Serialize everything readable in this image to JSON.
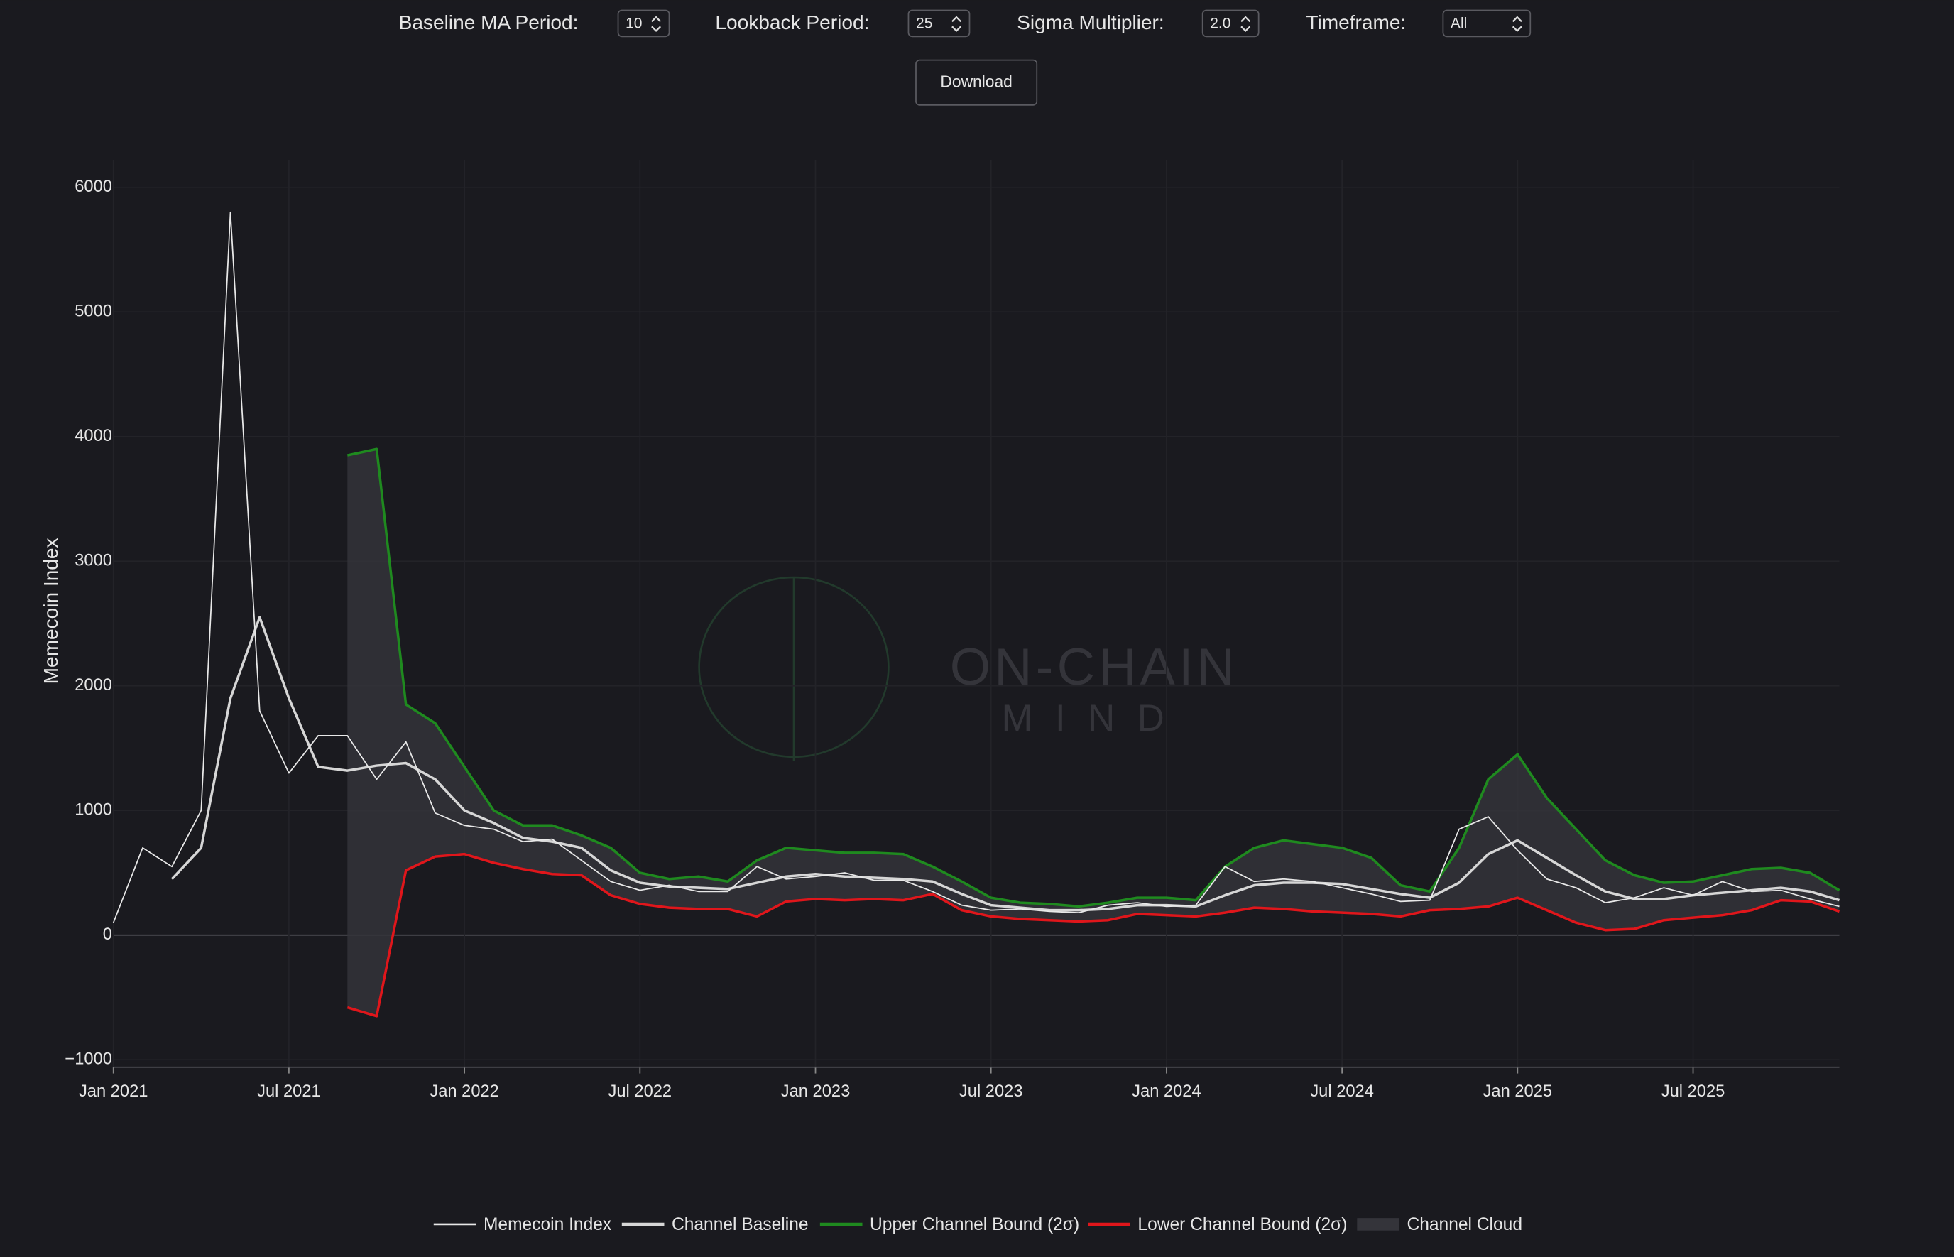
{
  "controls": [
    {
      "label": "Baseline MA Period:",
      "value": "10"
    },
    {
      "label": "Lookback Period:",
      "value": "25"
    },
    {
      "label": "Sigma Multiplier:",
      "value": "2.0"
    },
    {
      "label": "Timeframe:",
      "value": "All"
    }
  ],
  "download": "Download",
  "watermark": [
    "ON-CHAIN",
    "MIND"
  ],
  "chart_data": {
    "type": "line",
    "ylabel": "Memecoin Index",
    "x": [
      "2021-01",
      "2021-02",
      "2021-03",
      "2021-04",
      "2021-05",
      "2021-06",
      "2021-07",
      "2021-08",
      "2021-09",
      "2021-10",
      "2021-11",
      "2021-12",
      "2022-01",
      "2022-02",
      "2022-03",
      "2022-04",
      "2022-05",
      "2022-06",
      "2022-07",
      "2022-08",
      "2022-09",
      "2022-10",
      "2022-11",
      "2022-12",
      "2023-01",
      "2023-02",
      "2023-03",
      "2023-04",
      "2023-05",
      "2023-06",
      "2023-07",
      "2023-08",
      "2023-09",
      "2023-10",
      "2023-11",
      "2023-12",
      "2024-01",
      "2024-02",
      "2024-03",
      "2024-04",
      "2024-05",
      "2024-06",
      "2024-07",
      "2024-08",
      "2024-09",
      "2024-10",
      "2024-11",
      "2024-12",
      "2025-01",
      "2025-02",
      "2025-03",
      "2025-04",
      "2025-05",
      "2025-06",
      "2025-07",
      "2025-08",
      "2025-09",
      "2025-10",
      "2025-11",
      "2025-12"
    ],
    "xlim": [
      "2021-01",
      "2025-12"
    ],
    "xticks": [
      {
        "value": "2021-01",
        "label": "Jan 2021"
      },
      {
        "value": "2021-07",
        "label": "Jul 2021"
      },
      {
        "value": "2022-01",
        "label": "Jan 2022"
      },
      {
        "value": "2022-07",
        "label": "Jul 2022"
      },
      {
        "value": "2023-01",
        "label": "Jan 2023"
      },
      {
        "value": "2023-07",
        "label": "Jul 2023"
      },
      {
        "value": "2024-01",
        "label": "Jan 2024"
      },
      {
        "value": "2024-07",
        "label": "Jul 2024"
      },
      {
        "value": "2025-01",
        "label": "Jan 2025"
      },
      {
        "value": "2025-07",
        "label": "Jul 2025"
      }
    ],
    "ylim": [
      -1060,
      6220
    ],
    "yticks": [
      {
        "value": -1000,
        "label": "−1000"
      },
      0,
      1000,
      2000,
      3000,
      4000,
      5000,
      6000
    ],
    "grid": true,
    "legend": "bottom",
    "series": [
      {
        "name": "Memecoin Index",
        "color": "#e8e8e8",
        "values": [
          100,
          700,
          550,
          1000,
          5800,
          1800,
          1300,
          1600,
          1600,
          1250,
          1550,
          980,
          880,
          850,
          750,
          770,
          600,
          430,
          360,
          400,
          350,
          350,
          550,
          450,
          470,
          500,
          440,
          440,
          350,
          240,
          200,
          210,
          190,
          180,
          240,
          260,
          230,
          240,
          550,
          430,
          450,
          430,
          380,
          330,
          270,
          280,
          850,
          950,
          680,
          450,
          380,
          260,
          300,
          380,
          320,
          430,
          350,
          360,
          290,
          230
        ]
      },
      {
        "name": "Channel Baseline",
        "color": "#d6d6d6",
        "values": [
          null,
          null,
          450,
          700,
          1900,
          2550,
          1900,
          1350,
          1320,
          1360,
          1380,
          1250,
          1000,
          900,
          780,
          750,
          700,
          520,
          420,
          390,
          380,
          370,
          420,
          470,
          490,
          470,
          460,
          450,
          430,
          330,
          240,
          220,
          200,
          200,
          210,
          240,
          240,
          230,
          320,
          400,
          420,
          420,
          410,
          370,
          330,
          300,
          420,
          650,
          760,
          620,
          480,
          350,
          290,
          290,
          320,
          340,
          360,
          380,
          350,
          280
        ]
      },
      {
        "name": "Upper Channel Bound (2σ)",
        "color": "#1f8a1f",
        "values": [
          null,
          null,
          null,
          null,
          null,
          null,
          null,
          null,
          3850,
          3900,
          1850,
          1700,
          1350,
          1000,
          880,
          880,
          800,
          700,
          500,
          450,
          470,
          430,
          600,
          700,
          680,
          660,
          660,
          650,
          550,
          430,
          300,
          260,
          250,
          230,
          260,
          300,
          300,
          280,
          550,
          700,
          760,
          730,
          700,
          620,
          400,
          350,
          700,
          1250,
          1450,
          1100,
          850,
          600,
          480,
          420,
          430,
          480,
          530,
          540,
          500,
          360
        ]
      },
      {
        "name": "Lower Channel Bound (2σ)",
        "color": "#e0161b",
        "values": [
          null,
          null,
          null,
          null,
          null,
          null,
          null,
          null,
          -580,
          -650,
          520,
          630,
          650,
          580,
          530,
          490,
          480,
          320,
          250,
          220,
          210,
          210,
          150,
          270,
          290,
          280,
          290,
          280,
          330,
          200,
          150,
          130,
          120,
          110,
          120,
          170,
          160,
          150,
          180,
          220,
          210,
          190,
          180,
          170,
          150,
          200,
          210,
          230,
          300,
          200,
          100,
          40,
          50,
          120,
          140,
          160,
          200,
          280,
          270,
          190
        ]
      }
    ],
    "band": {
      "name": "Channel Cloud",
      "color": "#34343a"
    }
  }
}
